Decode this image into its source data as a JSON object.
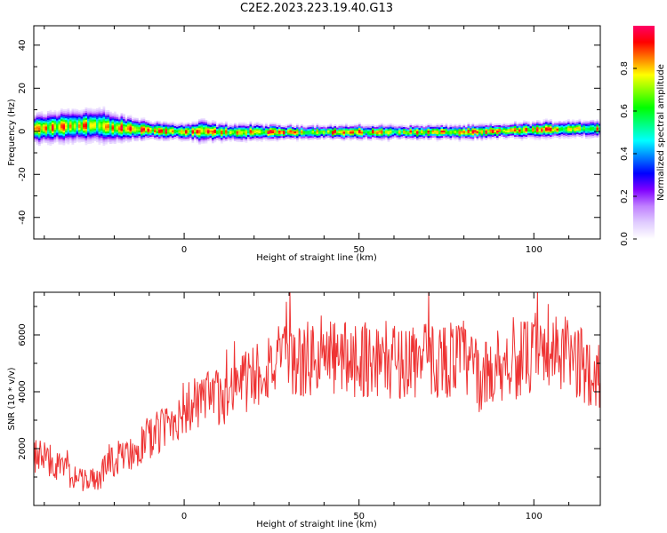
{
  "title": "C2E2.2023.223.19.40.G13",
  "chart_data": [
    {
      "type": "heatmap",
      "name": "spectrogram",
      "xlabel": "Height of straight line (km)",
      "ylabel": "Frequency (Hz)",
      "xlim": [
        -43,
        119
      ],
      "ylim": [
        -50,
        49
      ],
      "xticks": [
        0,
        50,
        100
      ],
      "yticks": [
        -40,
        -20,
        0,
        20,
        40
      ],
      "colorbar": {
        "label": "Normalized spectral amplitude",
        "range": [
          0.0,
          1.0
        ],
        "ticks": [
          0.0,
          0.2,
          0.4,
          0.6,
          0.8
        ],
        "colormap": [
          "#ffffff",
          "#e0ccff",
          "#c080ff",
          "#8000ff",
          "#0000ff",
          "#0080ff",
          "#00ffff",
          "#00ff80",
          "#00ff00",
          "#80ff00",
          "#ffff00",
          "#ff8000",
          "#ff0000",
          "#ff0066"
        ]
      },
      "ridge": {
        "x": [
          -43,
          -35,
          -30,
          -25,
          -20,
          -15,
          -10,
          -5,
          0,
          5,
          10,
          20,
          30,
          40,
          50,
          60,
          70,
          80,
          90,
          100,
          110,
          119
        ],
        "y": [
          1.5,
          2.5,
          3,
          3,
          2,
          1.5,
          1,
          0.5,
          0,
          0.5,
          0,
          0,
          0,
          0,
          0,
          0,
          0,
          0,
          0.5,
          1,
          1.5,
          1.5
        ],
        "halfwidth": [
          5,
          6,
          6,
          6,
          5,
          4,
          3.5,
          3,
          3,
          4,
          3,
          3,
          2.5,
          2.5,
          2.5,
          2.5,
          2.5,
          2.5,
          2.5,
          3,
          3,
          3
        ]
      }
    },
    {
      "type": "line",
      "name": "snr",
      "xlabel": "Height of straight line (km)",
      "ylabel": "SNR (10 * v/v)",
      "xlim": [
        -43,
        119
      ],
      "ylim": [
        0,
        7500
      ],
      "xticks": [
        0,
        50,
        100
      ],
      "yticks": [
        2000,
        4000,
        6000
      ],
      "color": "#ee3333",
      "envelope": {
        "x": [
          -43,
          -40,
          -35,
          -30,
          -25,
          -20,
          -15,
          -10,
          -5,
          0,
          5,
          10,
          15,
          20,
          25,
          30,
          40,
          50,
          60,
          70,
          80,
          85,
          90,
          100,
          110,
          115,
          119
        ],
        "y": [
          1800,
          1700,
          1300,
          900,
          900,
          1600,
          1900,
          2300,
          2800,
          3400,
          3600,
          3800,
          4200,
          4600,
          5000,
          5000,
          5200,
          5200,
          5100,
          5100,
          5200,
          4400,
          5000,
          5200,
          5300,
          4800,
          4600
        ]
      }
    }
  ]
}
